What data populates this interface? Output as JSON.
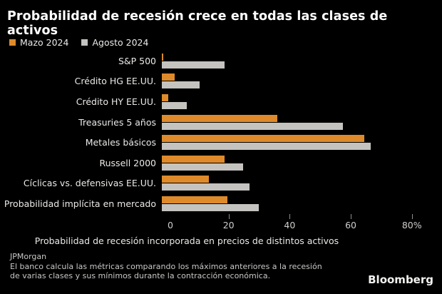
{
  "chart_data": {
    "type": "bar",
    "orientation": "horizontal",
    "title": "Probabilidad de recesión crece en todas las clases de activos",
    "xlabel": "Probabilidad de recesión incorporada en precios de distintos activos",
    "categories": [
      "S&P 500",
      "Crédito HG EE.UU.",
      "Crédito HY EE.UU.",
      "Treasuries 5 años",
      "Metales básicos",
      "Russell 2000",
      "Cíclicas vs. defensivas EE.UU.",
      "Probabilidad implícita en mercado"
    ],
    "series": [
      {
        "name": "Mazo 2024",
        "color": "#de8a2b",
        "values": [
          0.5,
          4,
          2,
          37,
          65,
          20,
          15,
          21
        ]
      },
      {
        "name": "Agosto 2024",
        "color": "#c4c3bf",
        "values": [
          20,
          12,
          8,
          58,
          67,
          26,
          28,
          31
        ]
      }
    ],
    "xlim": [
      0,
      88
    ],
    "x_ticks": [
      0,
      20,
      40,
      60,
      80
    ],
    "x_tick_labels": [
      "0",
      "20",
      "40",
      "60",
      "80%"
    ],
    "grid": "off",
    "legend_position": "top-left",
    "background_color": "#000000"
  },
  "footer": {
    "source": "JPMorgan",
    "note_lines": [
      "El banco calcula las métricas comparando los máximos anteriores a la recesión",
      "de varias clases y sus mínimos durante la contracción económica."
    ],
    "brand": "Bloomberg"
  }
}
